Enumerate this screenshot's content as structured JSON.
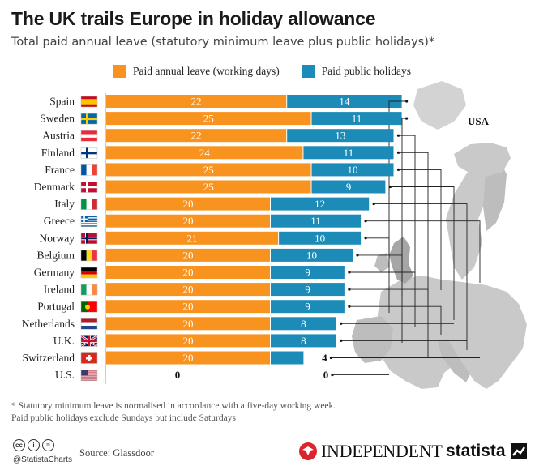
{
  "header": {
    "title": "The UK trails Europe in holiday allowance",
    "subtitle": "Total paid annual leave (statutory minimum leave plus public holidays)*"
  },
  "colors": {
    "annual": "#f7931e",
    "public": "#1d8bb8",
    "map_land": "#c9c9c9",
    "map_highlight": "#a6a6a6"
  },
  "chart_data": {
    "type": "bar",
    "orientation": "horizontal",
    "stacked": true,
    "categories": [
      "Spain",
      "Sweden",
      "Austria",
      "Finland",
      "France",
      "Denmark",
      "Italy",
      "Greece",
      "Norway",
      "Belgium",
      "Germany",
      "Ireland",
      "Portugal",
      "Netherlands",
      "U.K.",
      "Switzerland",
      "U.S."
    ],
    "flags": [
      "flag-spain-icon",
      "flag-sweden-icon",
      "flag-austria-icon",
      "flag-finland-icon",
      "flag-france-icon",
      "flag-denmark-icon",
      "flag-italy-icon",
      "flag-greece-icon",
      "flag-norway-icon",
      "flag-belgium-icon",
      "flag-germany-icon",
      "flag-ireland-icon",
      "flag-portugal-icon",
      "flag-netherlands-icon",
      "flag-uk-icon",
      "flag-switzerland-icon",
      "flag-us-icon"
    ],
    "series": [
      {
        "name": "Paid annual leave (working days)",
        "values": [
          22,
          25,
          22,
          24,
          25,
          25,
          20,
          20,
          21,
          20,
          20,
          20,
          20,
          20,
          20,
          20,
          0
        ]
      },
      {
        "name": "Paid public holidays",
        "values": [
          14,
          11,
          13,
          11,
          10,
          9,
          12,
          11,
          10,
          10,
          9,
          9,
          9,
          8,
          8,
          4,
          0
        ]
      }
    ],
    "map_label": "USA",
    "xlim": [
      0,
      36
    ]
  },
  "footnote": {
    "line1": "* Statutory minimum leave is normalised in accordance with a five-day working week.",
    "line2": "Paid public holidays exclude Sundays but include Saturdays"
  },
  "footer": {
    "handle": "@StatistaCharts",
    "source": "Source: Glassdoor",
    "publisher": "INDEPENDENT",
    "brand": "statista"
  }
}
